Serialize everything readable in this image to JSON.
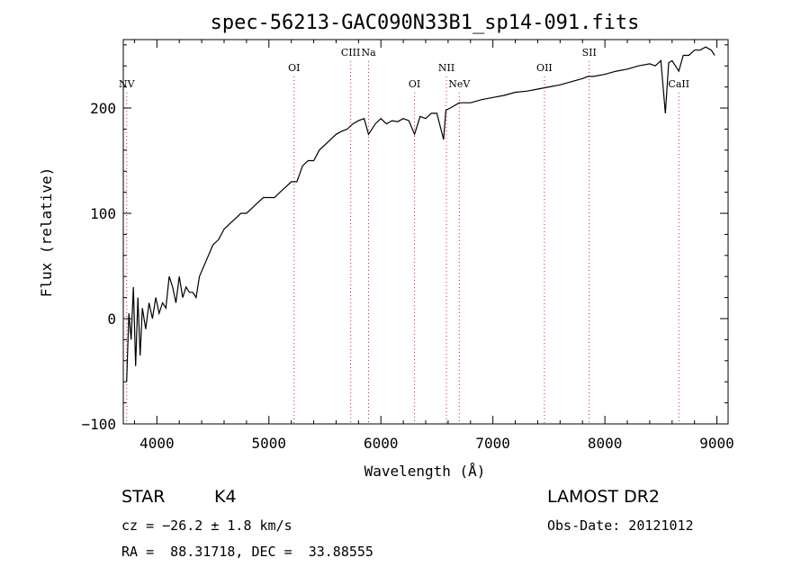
{
  "chart_data": {
    "type": "line",
    "title": "spec-56213-GAC090N33B1_sp14-091.fits",
    "xlabel": "Wavelength (Å)",
    "ylabel": "Flux (relative)",
    "xlim": [
      3700,
      9100
    ],
    "ylim": [
      -100,
      265
    ],
    "xticks": [
      "4000",
      "5000",
      "6000",
      "7000",
      "8000",
      "9000"
    ],
    "yticks": [
      "−100",
      "0",
      "100",
      "200"
    ],
    "series": [
      {
        "x": [
          3730,
          3750,
          3770,
          3790,
          3810,
          3830,
          3850,
          3870,
          3900,
          3930,
          3960,
          3990,
          4020,
          4050,
          4080,
          4110,
          4140,
          4170,
          4200,
          4230,
          4260,
          4290,
          4320,
          4350,
          4380,
          4420,
          4460,
          4500,
          4550,
          4600,
          4650,
          4700,
          4750,
          4800,
          4850,
          4900,
          4950,
          5000,
          5050,
          5100,
          5150,
          5200,
          5250,
          5300,
          5350,
          5400,
          5450,
          5500,
          5550,
          5600,
          5650,
          5700,
          5750,
          5800,
          5850,
          5890,
          5950,
          6000,
          6050,
          6100,
          6150,
          6200,
          6250,
          6300,
          6350,
          6400,
          6450,
          6500,
          6560,
          6580,
          6620,
          6700,
          6800,
          6900,
          7000,
          7100,
          7200,
          7300,
          7400,
          7500,
          7600,
          7700,
          7800,
          7850,
          7900,
          8000,
          8100,
          8200,
          8300,
          8400,
          8450,
          8500,
          8540,
          8570,
          8600,
          8660,
          8700,
          8750,
          8800,
          8850,
          8900,
          8950,
          8980
        ],
        "values": [
          -60,
          5,
          -20,
          30,
          -45,
          20,
          -35,
          10,
          -10,
          15,
          0,
          20,
          5,
          15,
          10,
          40,
          30,
          15,
          40,
          20,
          30,
          25,
          25,
          20,
          40,
          50,
          60,
          70,
          75,
          85,
          90,
          95,
          100,
          100,
          105,
          110,
          115,
          115,
          115,
          120,
          125,
          130,
          130,
          145,
          150,
          150,
          160,
          165,
          170,
          175,
          178,
          180,
          185,
          188,
          190,
          175,
          185,
          190,
          185,
          188,
          187,
          190,
          188,
          175,
          192,
          190,
          195,
          195,
          170,
          198,
          200,
          205,
          205,
          208,
          210,
          212,
          215,
          216,
          218,
          220,
          222,
          225,
          228,
          230,
          230,
          232,
          235,
          237,
          240,
          242,
          240,
          245,
          195,
          243,
          245,
          235,
          250,
          250,
          255,
          255,
          258,
          255,
          250
        ]
      }
    ],
    "lines": [
      {
        "name": "NV",
        "x": 3730,
        "row": 2
      },
      {
        "name": "OI",
        "x": 5225,
        "row": 1
      },
      {
        "name": "CIII",
        "x": 5730,
        "row": 0
      },
      {
        "name": "Na",
        "x": 5890,
        "row": 0
      },
      {
        "name": "OI",
        "x": 6300,
        "row": 2
      },
      {
        "name": "NII",
        "x": 6585,
        "row": 1
      },
      {
        "name": "NeV",
        "x": 6700,
        "row": 2
      },
      {
        "name": "OII",
        "x": 7460,
        "row": 1
      },
      {
        "name": "SII",
        "x": 7860,
        "row": 0
      },
      {
        "name": "CaII",
        "x": 8660,
        "row": 2
      }
    ],
    "grid": false
  },
  "info": {
    "object_type": "STAR",
    "subclass": "K4",
    "survey": "LAMOST DR2",
    "cz": "cz = −26.2 ± 1.8 km/s",
    "obs_date": "Obs-Date: 20121012",
    "coords": "RA =  88.31718, DEC =  33.88555"
  }
}
